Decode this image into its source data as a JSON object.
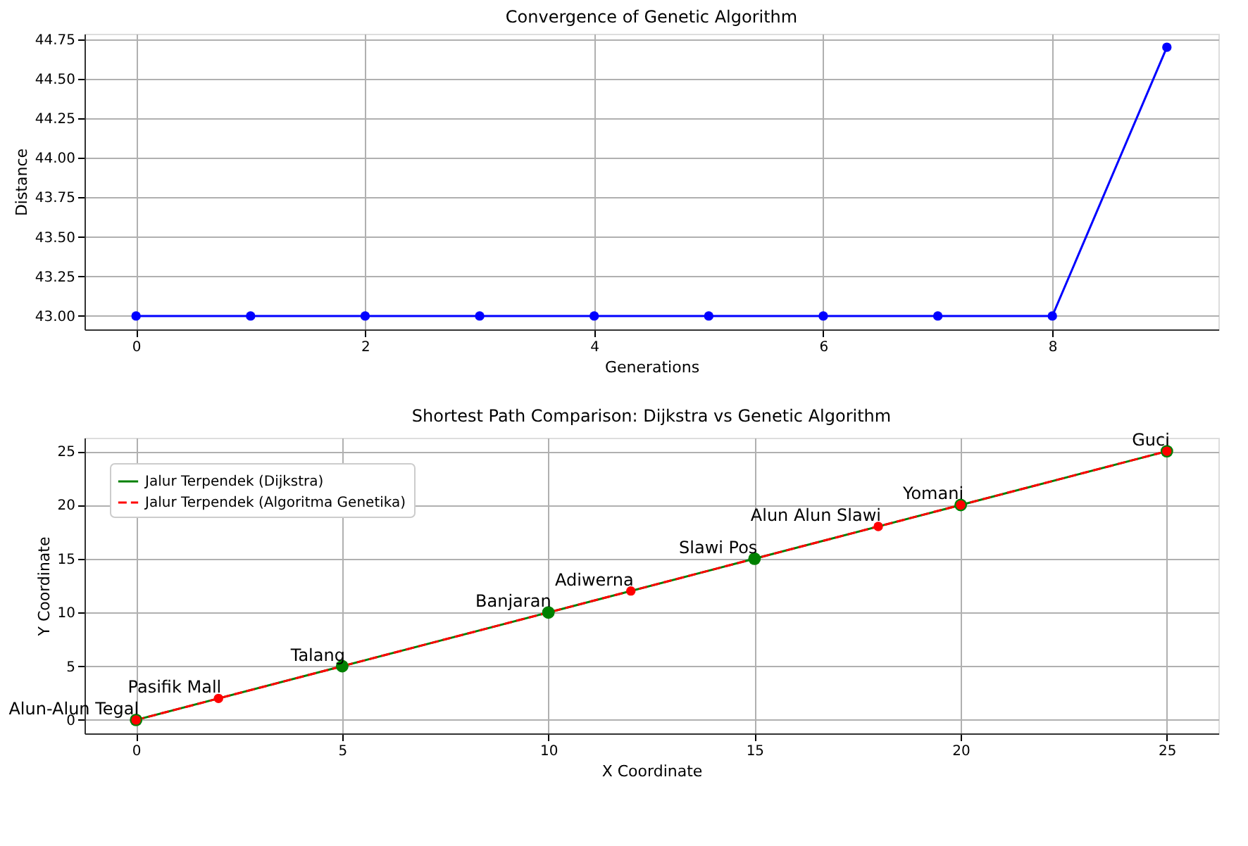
{
  "chart_data": [
    {
      "type": "line",
      "title": "Convergence of Genetic Algorithm",
      "xlabel": "Generations",
      "ylabel": "Distance",
      "x": [
        0,
        1,
        2,
        3,
        4,
        5,
        6,
        7,
        8,
        9
      ],
      "series": [
        {
          "color": "#0000ff",
          "values": [
            43.0,
            43.0,
            43.0,
            43.0,
            43.0,
            43.0,
            43.0,
            43.0,
            43.0,
            44.7
          ]
        }
      ],
      "xlim": [
        -0.45,
        9.45
      ],
      "xticks": [
        0,
        2,
        4,
        6,
        8
      ],
      "ylim": [
        42.915,
        44.785
      ],
      "yticks": [
        {
          "value": 43,
          "label": "43.00"
        },
        {
          "value": 43.25,
          "label": "43.25"
        },
        {
          "value": 43.5,
          "label": "43.50"
        },
        {
          "value": 43.75,
          "label": "43.75"
        },
        {
          "value": 44,
          "label": "44.00"
        },
        {
          "value": 44.25,
          "label": "44.25"
        },
        {
          "value": 44.5,
          "label": "44.50"
        },
        {
          "value": 44.75,
          "label": "44.75"
        }
      ],
      "grid": true,
      "marker": "circle",
      "line_style": "solid",
      "legend": false
    },
    {
      "type": "line",
      "title": "Shortest Path Comparison: Dijkstra vs Genetic Algorithm",
      "xlabel": "X Coordinate",
      "ylabel": "Y Coordinate",
      "series": [
        {
          "name": "Jalur Terpendek (Dijkstra)",
          "color": "#008000",
          "x": [
            0,
            5,
            10,
            15,
            20,
            25
          ],
          "values": [
            0,
            5,
            10,
            15,
            20,
            25
          ],
          "line_style": "solid"
        },
        {
          "name": "Jalur Terpendek (Algoritma Genetika)",
          "color": "#ff0000",
          "x": [
            0,
            2,
            12,
            18,
            20,
            25
          ],
          "values": [
            0,
            2,
            12,
            18,
            20,
            25
          ],
          "line_style": "dashed"
        }
      ],
      "annotations": [
        {
          "text": "Alun-Alun Tegal",
          "x": 0,
          "y": 0
        },
        {
          "text": "Pasifik Mall",
          "x": 2,
          "y": 2
        },
        {
          "text": "Talang",
          "x": 5,
          "y": 5
        },
        {
          "text": "Banjaran",
          "x": 10,
          "y": 10
        },
        {
          "text": "Adiwerna",
          "x": 12,
          "y": 12
        },
        {
          "text": "Slawi Pos",
          "x": 15,
          "y": 15
        },
        {
          "text": "Alun Alun Slawi",
          "x": 18,
          "y": 18
        },
        {
          "text": "Yomani",
          "x": 20,
          "y": 20
        },
        {
          "text": "Guci",
          "x": 25,
          "y": 25
        }
      ],
      "xlim": [
        -1.25,
        26.25
      ],
      "xticks": [
        0,
        5,
        10,
        15,
        20,
        25
      ],
      "ylim": [
        -1.25,
        26.25
      ],
      "yticks": [
        0,
        5,
        10,
        15,
        20,
        25
      ],
      "grid": true,
      "marker": "circle",
      "legend": "top left"
    }
  ]
}
